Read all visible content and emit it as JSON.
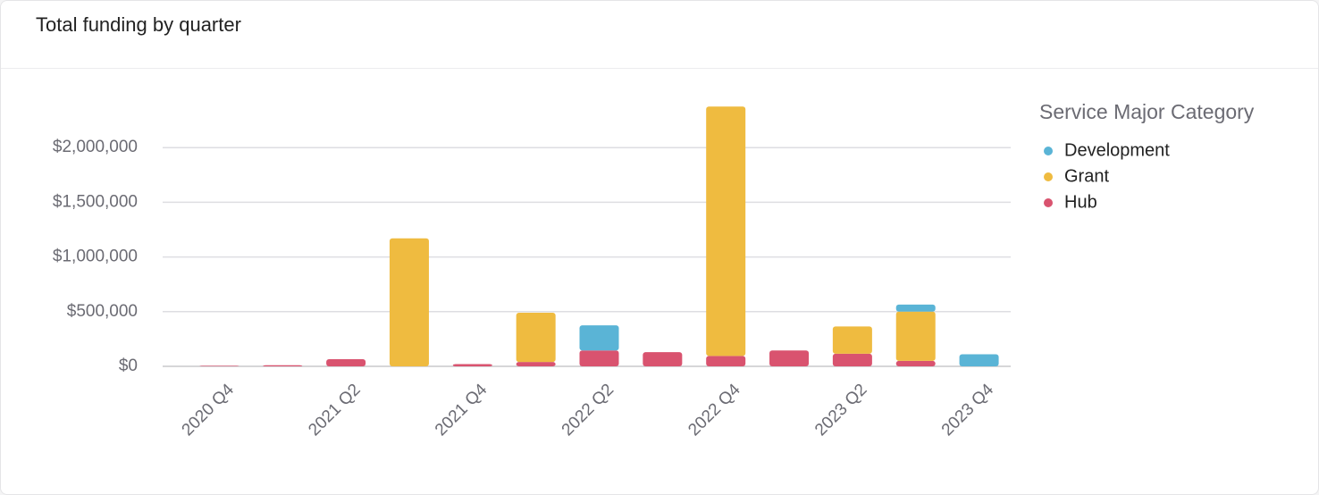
{
  "chart_data": {
    "type": "bar",
    "stacked": true,
    "title": "Total funding by quarter",
    "legend_title": "Service Major Category",
    "legend_position": "right",
    "grid": true,
    "categories": [
      "2020 Q4",
      null,
      "2021 Q2",
      null,
      "2021 Q4",
      null,
      "2022 Q2",
      null,
      "2022 Q4",
      null,
      "2023 Q2",
      null,
      "2023 Q4"
    ],
    "series": [
      {
        "name": "Development",
        "color": "#5ab4d6",
        "values": [
          0,
          0,
          0,
          0,
          0,
          0,
          230000,
          0,
          0,
          0,
          0,
          65000,
          110000
        ]
      },
      {
        "name": "Grant",
        "color": "#efbb40",
        "values": [
          0,
          0,
          0,
          1170000,
          0,
          450000,
          0,
          0,
          2280000,
          0,
          250000,
          450000,
          0
        ]
      },
      {
        "name": "Hub",
        "color": "#d9536f",
        "values": [
          5000,
          10000,
          65000,
          0,
          20000,
          40000,
          145000,
          130000,
          95000,
          145000,
          115000,
          50000,
          0
        ]
      }
    ],
    "ylim": [
      0,
      2500000
    ],
    "yticks": [
      {
        "value": 0,
        "label": "$0"
      },
      {
        "value": 500000,
        "label": "$500,000"
      },
      {
        "value": 1000000,
        "label": "$1,000,000"
      },
      {
        "value": 1500000,
        "label": "$1,500,000"
      },
      {
        "value": 2000000,
        "label": "$2,000,000"
      }
    ]
  }
}
